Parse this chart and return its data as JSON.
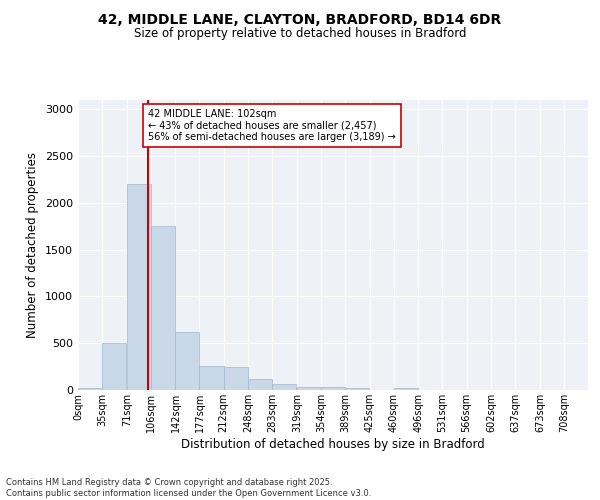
{
  "title_line1": "42, MIDDLE LANE, CLAYTON, BRADFORD, BD14 6DR",
  "title_line2": "Size of property relative to detached houses in Bradford",
  "xlabel": "Distribution of detached houses by size in Bradford",
  "ylabel": "Number of detached properties",
  "footer_line1": "Contains HM Land Registry data © Crown copyright and database right 2025.",
  "footer_line2": "Contains public sector information licensed under the Open Government Licence v3.0.",
  "annotation_title": "42 MIDDLE LANE: 102sqm",
  "annotation_line2": "← 43% of detached houses are smaller (2,457)",
  "annotation_line3": "56% of semi-detached houses are larger (3,189) →",
  "bar_color": "#c8d8e8",
  "bar_edge_color": "#a0b8cc",
  "vline_color": "#cc0000",
  "vline_x": 102,
  "background_color": "#eef2f7",
  "categories": [
    0,
    35,
    71,
    106,
    142,
    177,
    212,
    248,
    283,
    319,
    354,
    389,
    425,
    460,
    496,
    531,
    566,
    602,
    637,
    673,
    708
  ],
  "category_labels": [
    "0sqm",
    "35sqm",
    "71sqm",
    "106sqm",
    "142sqm",
    "177sqm",
    "212sqm",
    "248sqm",
    "283sqm",
    "319sqm",
    "354sqm",
    "389sqm",
    "425sqm",
    "460sqm",
    "496sqm",
    "531sqm",
    "566sqm",
    "602sqm",
    "637sqm",
    "673sqm",
    "708sqm"
  ],
  "bin_width": 35,
  "values": [
    20,
    500,
    2200,
    1750,
    620,
    260,
    250,
    115,
    65,
    35,
    35,
    20,
    0,
    20,
    0,
    0,
    0,
    0,
    0,
    0,
    0
  ],
  "ylim": [
    0,
    3100
  ],
  "yticks": [
    0,
    500,
    1000,
    1500,
    2000,
    2500,
    3000
  ],
  "xlim_max": 743
}
